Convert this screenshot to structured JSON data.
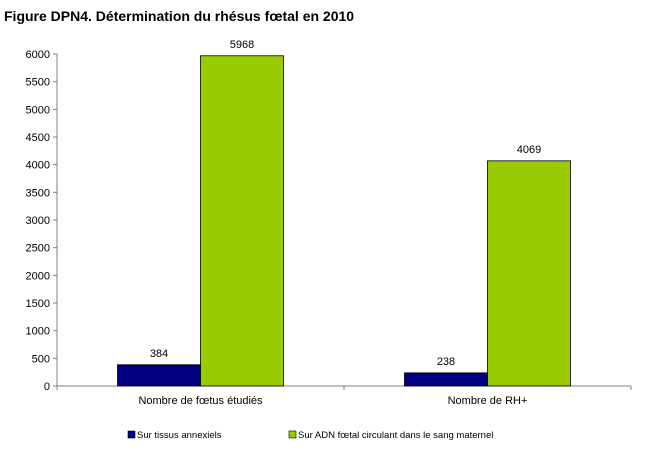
{
  "title": "Figure DPN4. Détermination du rhésus fœtal en 2010",
  "chart_data": {
    "type": "bar",
    "title": "Figure DPN4. Détermination du rhésus fœtal en 2010",
    "categories": [
      "Nombre de fœtus étudiés",
      "Nombre de RH+"
    ],
    "series": [
      {
        "name": "Sur tissus annexiels",
        "values": [
          384,
          238
        ],
        "color": "#000080"
      },
      {
        "name": "Sur ADN fœtal circulant dans le sang maternel",
        "values": [
          5968,
          4069
        ],
        "color": "#99CC00"
      }
    ],
    "xlabel": "",
    "ylabel": "",
    "ylim": [
      0,
      6000
    ],
    "yticks": [
      0,
      500,
      1000,
      1500,
      2000,
      2500,
      3000,
      3500,
      4000,
      4500,
      5000,
      5500,
      6000
    ],
    "data_labels": true,
    "grid": false,
    "legend_position": "bottom"
  }
}
